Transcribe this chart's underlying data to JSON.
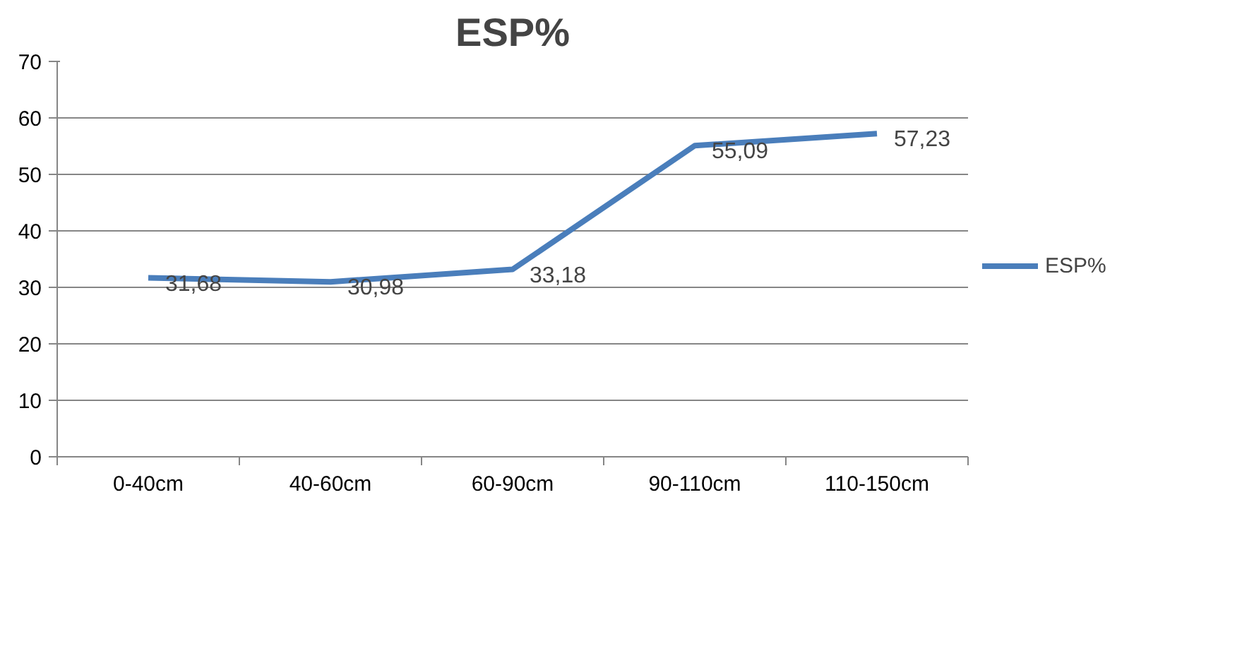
{
  "chart_data": {
    "type": "line",
    "title": "ESP%",
    "categories": [
      "0-40cm",
      "40-60cm",
      "60-90cm",
      "90-110cm",
      "110-150cm"
    ],
    "series": [
      {
        "name": "ESP%",
        "color": "#4a7ebb",
        "values": [
          31.68,
          30.98,
          33.18,
          55.09,
          57.23
        ],
        "value_labels": [
          "31,68",
          "30,98",
          "33,18",
          "55,09",
          "57,23"
        ]
      }
    ],
    "ylim": [
      0,
      70
    ],
    "yticks": [
      0,
      10,
      20,
      30,
      40,
      50,
      60,
      70
    ],
    "grid": "y",
    "legend": "right",
    "marker": "none",
    "line_style": "solid"
  }
}
